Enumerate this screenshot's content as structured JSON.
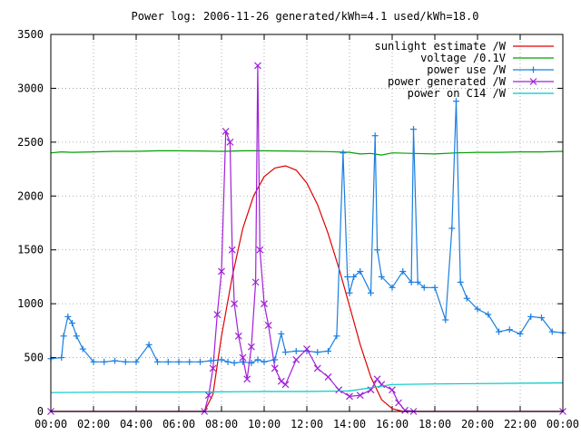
{
  "chart_data": {
    "type": "line",
    "title": "Power log: 2006-11-26 generated/kWh=4.1 used/kWh=18.0",
    "xlabel": "",
    "ylabel": "",
    "x_unit": "hour of day",
    "xlim": [
      0,
      24
    ],
    "ylim": [
      0,
      3500
    ],
    "grid": true,
    "legend_position": "top-right",
    "x_ticks": [
      0,
      2,
      4,
      6,
      8,
      10,
      12,
      14,
      16,
      18,
      20,
      22,
      24
    ],
    "x_tick_labels": [
      "00:00",
      "02:00",
      "04:00",
      "06:00",
      "08:00",
      "10:00",
      "12:00",
      "14:00",
      "16:00",
      "18:00",
      "20:00",
      "22:00",
      "00:00"
    ],
    "y_ticks": [
      0,
      500,
      1000,
      1500,
      2000,
      2500,
      3000,
      3500
    ],
    "y_tick_labels": [
      "0",
      "500",
      "1000",
      "1500",
      "2000",
      "2500",
      "3000",
      "3500"
    ],
    "series": [
      {
        "name": "sunlight estimate /W",
        "color": "#e00000",
        "marker": "none",
        "x": [
          0,
          7.2,
          7.6,
          8.0,
          8.5,
          9.0,
          9.5,
          10.0,
          10.5,
          11.0,
          11.5,
          12.0,
          12.5,
          13.0,
          13.5,
          14.0,
          14.5,
          15.0,
          15.5,
          16.0,
          16.5,
          17.0,
          24
        ],
        "y": [
          0,
          0,
          160,
          700,
          1250,
          1700,
          2000,
          2180,
          2260,
          2280,
          2240,
          2120,
          1920,
          1650,
          1330,
          980,
          620,
          320,
          110,
          25,
          0,
          0,
          0
        ]
      },
      {
        "name": "voltage /0.1V",
        "color": "#00a000",
        "marker": "none",
        "x": [
          0,
          0.5,
          1,
          2,
          3,
          4,
          5,
          6,
          7,
          8,
          9,
          10,
          11,
          12,
          13,
          14,
          14.5,
          15,
          15.5,
          16,
          17,
          18,
          19,
          20,
          21,
          22,
          23,
          24
        ],
        "y": [
          2400,
          2410,
          2405,
          2410,
          2415,
          2415,
          2420,
          2420,
          2418,
          2415,
          2420,
          2420,
          2418,
          2415,
          2412,
          2405,
          2390,
          2395,
          2380,
          2400,
          2395,
          2390,
          2400,
          2405,
          2405,
          2410,
          2410,
          2415
        ]
      },
      {
        "name": "power use /W",
        "color": "#1a7fe0",
        "marker": "plus",
        "x": [
          0,
          0.5,
          0.6,
          0.8,
          1.0,
          1.2,
          1.5,
          2.0,
          2.5,
          3.0,
          3.5,
          4.0,
          4.6,
          5.0,
          5.5,
          6.0,
          6.5,
          7.0,
          7.5,
          8.0,
          8.3,
          8.6,
          9.0,
          9.4,
          9.7,
          10.0,
          10.5,
          10.8,
          11.0,
          11.5,
          12.0,
          12.5,
          13.0,
          13.4,
          13.7,
          13.9,
          14.0,
          14.2,
          14.5,
          15.0,
          15.2,
          15.3,
          15.5,
          16.0,
          16.5,
          16.9,
          17.0,
          17.2,
          17.5,
          18.0,
          18.5,
          18.8,
          19.0,
          19.2,
          19.5,
          20.0,
          20.5,
          21.0,
          21.5,
          22.0,
          22.5,
          23.0,
          23.5,
          24.0
        ],
        "y": [
          490,
          500,
          700,
          880,
          820,
          700,
          580,
          460,
          460,
          470,
          460,
          460,
          620,
          460,
          460,
          460,
          460,
          460,
          470,
          480,
          460,
          450,
          460,
          450,
          480,
          460,
          480,
          720,
          550,
          560,
          560,
          550,
          560,
          700,
          2400,
          1250,
          1100,
          1250,
          1300,
          1100,
          2560,
          1500,
          1250,
          1150,
          1300,
          1200,
          2620,
          1200,
          1150,
          1150,
          850,
          1700,
          2880,
          1200,
          1050,
          950,
          900,
          740,
          760,
          720,
          880,
          870,
          740,
          730
        ]
      },
      {
        "name": "power generated /W",
        "color": "#a020d8",
        "marker": "cross",
        "x": [
          0,
          7.2,
          7.4,
          7.6,
          7.8,
          8.0,
          8.2,
          8.4,
          8.5,
          8.6,
          8.8,
          9.0,
          9.2,
          9.4,
          9.6,
          9.7,
          9.8,
          10.0,
          10.2,
          10.5,
          10.8,
          11.0,
          11.5,
          12.0,
          12.5,
          13.0,
          13.5,
          14.0,
          14.5,
          15.0,
          15.3,
          15.5,
          16.0,
          16.3,
          16.6,
          17.0,
          24.0
        ],
        "y": [
          0,
          0,
          150,
          400,
          900,
          1300,
          2600,
          2500,
          1500,
          1000,
          700,
          500,
          300,
          600,
          1200,
          3210,
          1500,
          1000,
          800,
          400,
          280,
          250,
          480,
          580,
          400,
          320,
          200,
          140,
          150,
          200,
          300,
          250,
          200,
          80,
          10,
          0,
          0
        ]
      },
      {
        "name": "power on C14 /W",
        "color": "#00c8c8",
        "marker": "none",
        "x": [
          0,
          2,
          4,
          6,
          8,
          10,
          12,
          14,
          16,
          18,
          20,
          22,
          24
        ],
        "y": [
          175,
          178,
          180,
          180,
          182,
          185,
          185,
          190,
          250,
          255,
          258,
          262,
          265
        ]
      }
    ]
  }
}
